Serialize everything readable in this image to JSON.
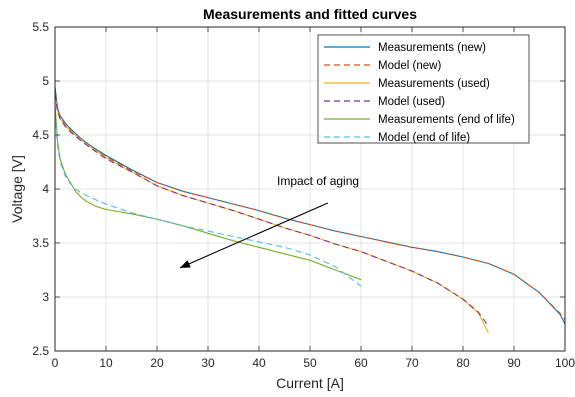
{
  "chart_data": {
    "type": "line",
    "title": "Measurements and fitted curves",
    "xlabel": "Current [A]",
    "ylabel": "Voltage [V]",
    "xlim": [
      0,
      100
    ],
    "ylim": [
      2.5,
      5.5
    ],
    "xticks": [
      0,
      10,
      20,
      30,
      40,
      50,
      60,
      70,
      80,
      90,
      100
    ],
    "yticks": [
      2.5,
      3,
      3.5,
      4,
      4.5,
      5,
      5.5
    ],
    "grid": true,
    "legend_position": "top-right",
    "annotation": {
      "text": "Impact of aging",
      "arrow_from": [
        53.5,
        3.87
      ],
      "arrow_to": [
        24.5,
        3.27
      ]
    },
    "series": [
      {
        "name": "Measurements (new)",
        "color": "#0072BD",
        "dash": "solid",
        "points": [
          [
            0,
            4.95
          ],
          [
            0.5,
            4.75
          ],
          [
            1,
            4.68
          ],
          [
            2,
            4.61
          ],
          [
            3,
            4.56
          ],
          [
            5,
            4.47
          ],
          [
            7,
            4.4
          ],
          [
            10,
            4.31
          ],
          [
            15,
            4.18
          ],
          [
            20,
            4.06
          ],
          [
            25,
            3.98
          ],
          [
            30,
            3.92
          ],
          [
            35,
            3.86
          ],
          [
            40,
            3.8
          ],
          [
            45,
            3.73
          ],
          [
            50,
            3.67
          ],
          [
            55,
            3.61
          ],
          [
            60,
            3.56
          ],
          [
            65,
            3.51
          ],
          [
            70,
            3.46
          ],
          [
            75,
            3.42
          ],
          [
            80,
            3.37
          ],
          [
            85,
            3.31
          ],
          [
            90,
            3.21
          ],
          [
            95,
            3.04
          ],
          [
            99,
            2.84
          ],
          [
            100,
            2.75
          ]
        ]
      },
      {
        "name": "Model (new)",
        "color": "#D95319",
        "dash": "dashed",
        "points": [
          [
            0,
            4.9
          ],
          [
            0.5,
            4.74
          ],
          [
            1,
            4.67
          ],
          [
            2,
            4.6
          ],
          [
            3,
            4.55
          ],
          [
            5,
            4.46
          ],
          [
            7,
            4.39
          ],
          [
            10,
            4.3
          ],
          [
            15,
            4.17
          ],
          [
            20,
            4.06
          ],
          [
            25,
            3.98
          ],
          [
            30,
            3.92
          ],
          [
            35,
            3.86
          ],
          [
            40,
            3.8
          ],
          [
            45,
            3.73
          ],
          [
            50,
            3.67
          ],
          [
            55,
            3.61
          ],
          [
            60,
            3.56
          ],
          [
            65,
            3.51
          ],
          [
            70,
            3.46
          ],
          [
            75,
            3.42
          ],
          [
            80,
            3.37
          ],
          [
            85,
            3.31
          ],
          [
            90,
            3.21
          ],
          [
            95,
            3.04
          ],
          [
            99,
            2.85
          ],
          [
            100,
            2.79
          ]
        ]
      },
      {
        "name": "Measurements (used)",
        "color": "#EDB120",
        "dash": "solid",
        "points": [
          [
            0,
            4.86
          ],
          [
            0.5,
            4.72
          ],
          [
            1,
            4.65
          ],
          [
            2,
            4.59
          ],
          [
            3,
            4.54
          ],
          [
            5,
            4.46
          ],
          [
            7,
            4.39
          ],
          [
            10,
            4.29
          ],
          [
            15,
            4.16
          ],
          [
            20,
            4.03
          ],
          [
            25,
            3.94
          ],
          [
            30,
            3.87
          ],
          [
            35,
            3.8
          ],
          [
            40,
            3.72
          ],
          [
            45,
            3.64
          ],
          [
            50,
            3.57
          ],
          [
            55,
            3.49
          ],
          [
            60,
            3.42
          ],
          [
            65,
            3.33
          ],
          [
            70,
            3.24
          ],
          [
            75,
            3.13
          ],
          [
            80,
            2.98
          ],
          [
            83,
            2.85
          ],
          [
            85,
            2.67
          ]
        ]
      },
      {
        "name": "Model (used)",
        "color": "#7E2F8E",
        "dash": "dashed",
        "points": [
          [
            0,
            4.88
          ],
          [
            0.5,
            4.72
          ],
          [
            1,
            4.65
          ],
          [
            2,
            4.58
          ],
          [
            3,
            4.53
          ],
          [
            5,
            4.45
          ],
          [
            7,
            4.38
          ],
          [
            10,
            4.28
          ],
          [
            15,
            4.16
          ],
          [
            20,
            4.03
          ],
          [
            25,
            3.94
          ],
          [
            30,
            3.87
          ],
          [
            35,
            3.8
          ],
          [
            40,
            3.72
          ],
          [
            45,
            3.64
          ],
          [
            50,
            3.57
          ],
          [
            55,
            3.49
          ],
          [
            60,
            3.42
          ],
          [
            65,
            3.33
          ],
          [
            70,
            3.24
          ],
          [
            75,
            3.13
          ],
          [
            80,
            2.98
          ],
          [
            83,
            2.86
          ],
          [
            85,
            2.73
          ]
        ]
      },
      {
        "name": "Measurements (end of life)",
        "color": "#77AC30",
        "dash": "solid",
        "points": [
          [
            0,
            4.78
          ],
          [
            0.5,
            4.45
          ],
          [
            1,
            4.28
          ],
          [
            2,
            4.14
          ],
          [
            3,
            4.06
          ],
          [
            4,
            3.98
          ],
          [
            5,
            3.93
          ],
          [
            6,
            3.89
          ],
          [
            8,
            3.84
          ],
          [
            10,
            3.81
          ],
          [
            15,
            3.77
          ],
          [
            20,
            3.72
          ],
          [
            25,
            3.66
          ],
          [
            30,
            3.59
          ],
          [
            35,
            3.52
          ],
          [
            40,
            3.46
          ],
          [
            45,
            3.4
          ],
          [
            50,
            3.34
          ],
          [
            55,
            3.25
          ],
          [
            60,
            3.16
          ]
        ]
      },
      {
        "name": "Model (end of life)",
        "color": "#4DBEEE",
        "dash": "dashed",
        "points": [
          [
            0,
            4.7
          ],
          [
            0.5,
            4.4
          ],
          [
            1,
            4.25
          ],
          [
            2,
            4.12
          ],
          [
            3,
            4.05
          ],
          [
            4,
            4.0
          ],
          [
            5,
            3.97
          ],
          [
            7,
            3.92
          ],
          [
            10,
            3.86
          ],
          [
            15,
            3.78
          ],
          [
            20,
            3.72
          ],
          [
            25,
            3.66
          ],
          [
            30,
            3.61
          ],
          [
            35,
            3.56
          ],
          [
            40,
            3.51
          ],
          [
            45,
            3.46
          ],
          [
            50,
            3.39
          ],
          [
            55,
            3.28
          ],
          [
            60,
            3.1
          ]
        ]
      }
    ]
  }
}
